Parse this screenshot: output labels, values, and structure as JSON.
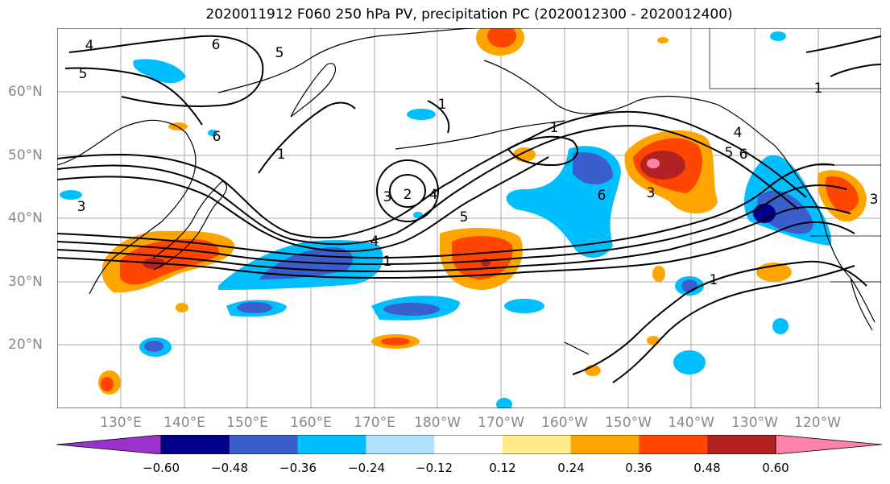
{
  "title": "2020011912 F060 250 hPa PV, precipitation PC (2020012300 - 2020012400)",
  "lat_labels": [
    "60°N",
    "50°N",
    "40°N",
    "30°N",
    "20°N"
  ],
  "lon_labels": [
    "130°E",
    "140°E",
    "150°E",
    "160°E",
    "170°E",
    "180°W",
    "170°W",
    "160°W",
    "150°W",
    "140°W",
    "130°W",
    "120°W"
  ],
  "colorbar": {
    "tick_labels": [
      "−0.60",
      "−0.48",
      "−0.36",
      "−0.24",
      "−0.12",
      "0.12",
      "0.24",
      "0.36",
      "0.48",
      "0.60"
    ],
    "colors": [
      "#9a32cd",
      "#00008b",
      "#3a5fcd",
      "#00bfff",
      "#b0e2ff",
      "#ffffff",
      "#ffec8b",
      "#ffa500",
      "#ff4500",
      "#b22222",
      "#ff82ab"
    ]
  },
  "contour_labels": [
    {
      "text": "4"
    },
    {
      "text": "6"
    },
    {
      "text": "5"
    },
    {
      "text": "5"
    },
    {
      "text": "6"
    },
    {
      "text": "1"
    },
    {
      "text": "1"
    },
    {
      "text": "1"
    },
    {
      "text": "1"
    },
    {
      "text": "3"
    },
    {
      "text": "3"
    },
    {
      "text": "2"
    },
    {
      "text": "4"
    },
    {
      "text": "5"
    },
    {
      "text": "6"
    },
    {
      "text": "3"
    },
    {
      "text": "5"
    },
    {
      "text": "6"
    },
    {
      "text": "4"
    },
    {
      "text": "4"
    },
    {
      "text": "1"
    },
    {
      "text": "1"
    },
    {
      "text": "3"
    }
  ]
}
